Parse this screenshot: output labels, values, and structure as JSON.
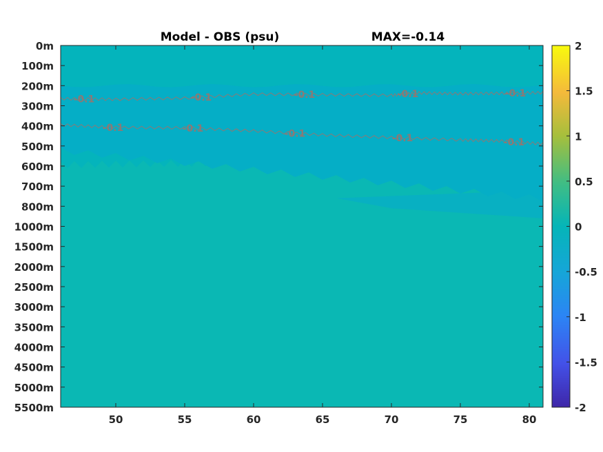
{
  "chart_data": {
    "type": "heatmap",
    "title": "Model - OBS (psu)",
    "annotation": "MAX=-0.14",
    "x_ticks": [
      "50",
      "55",
      "60",
      "65",
      "70",
      "75",
      "80"
    ],
    "x_tick_values": [
      50,
      55,
      60,
      65,
      70,
      75,
      80
    ],
    "xlim": [
      46,
      81
    ],
    "y_ticks": [
      "0m",
      "100m",
      "200m",
      "300m",
      "400m",
      "500m",
      "600m",
      "700m",
      "800m",
      "1000m",
      "1500m",
      "2000m",
      "2500m",
      "3000m",
      "3500m",
      "4000m",
      "4500m",
      "5000m",
      "5500m"
    ],
    "colorbar": {
      "ticks": [
        "2",
        "1.5",
        "1",
        "0.5",
        "0",
        "-0.5",
        "-1",
        "-1.5",
        "-2"
      ],
      "range": [
        -2,
        2
      ],
      "colormap": "parula"
    },
    "field_colors": {
      "upper_layer": "#04b4bc",
      "mid_core": "#05aec6",
      "deep_layer": "#0ab8b4",
      "deep_tongue": "#08b0c2"
    },
    "contours": [
      {
        "level": -0.1,
        "label": "-0.1",
        "points": [
          [
            46,
            265
          ],
          [
            50,
            268
          ],
          [
            55,
            262
          ],
          [
            60,
            242
          ],
          [
            65,
            245
          ],
          [
            70,
            248
          ],
          [
            72,
            236
          ],
          [
            75,
            240
          ],
          [
            78,
            238
          ],
          [
            81,
            235
          ]
        ],
        "label_at": [
          {
            "x": 47.7,
            "depth": 300
          },
          {
            "x": 56.2,
            "depth": 300
          },
          {
            "x": 63.7,
            "depth": 300
          },
          {
            "x": 71.2,
            "depth": 200
          },
          {
            "x": 79.0,
            "depth": 300
          }
        ]
      },
      {
        "level": -0.1,
        "label": "-0.1",
        "points": [
          [
            46,
            395
          ],
          [
            50,
            408
          ],
          [
            55,
            410
          ],
          [
            60,
            425
          ],
          [
            65,
            445
          ],
          [
            70,
            458
          ],
          [
            75,
            470
          ],
          [
            78,
            475
          ],
          [
            81,
            490
          ]
        ],
        "label_at": [
          {
            "x": 49.8,
            "depth": 400
          },
          {
            "x": 55.6,
            "depth": 400
          },
          {
            "x": 63.0,
            "depth": 400
          },
          {
            "x": 70.8,
            "depth": 500
          },
          {
            "x": 78.9,
            "depth": 500
          }
        ]
      }
    ],
    "grid": false,
    "legend": "colorbar-right"
  }
}
